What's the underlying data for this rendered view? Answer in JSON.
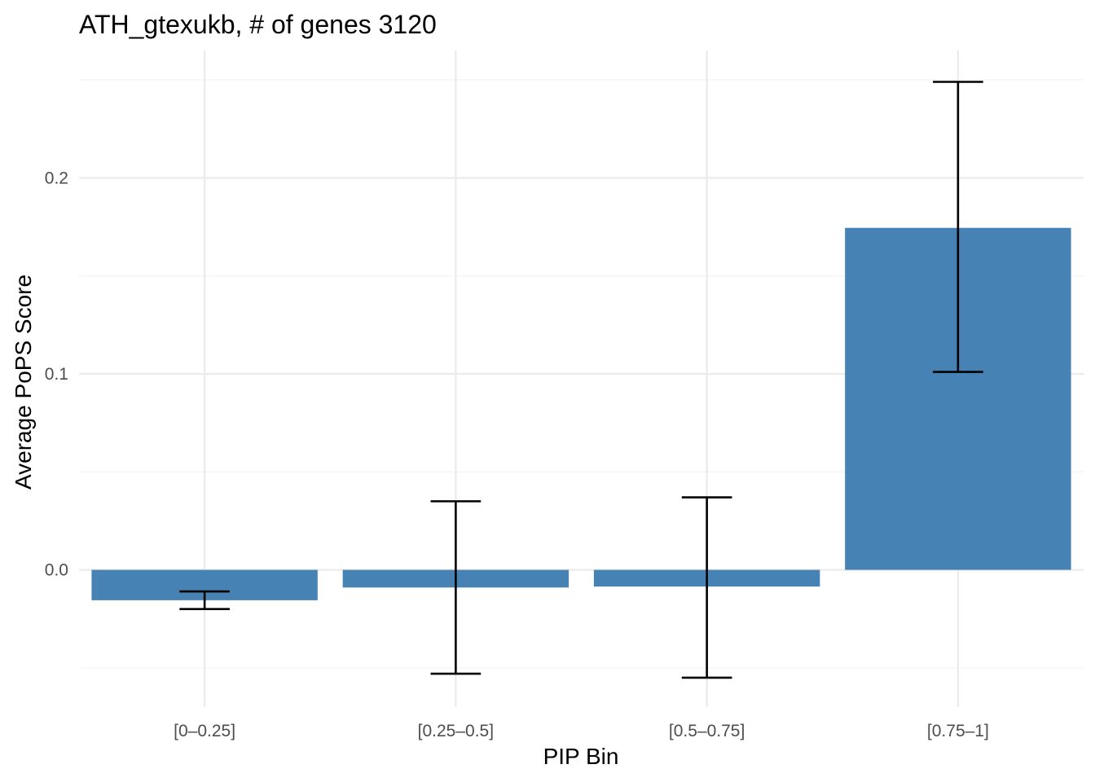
{
  "chart_data": {
    "type": "bar",
    "title": "ATH_gtexukb, # of genes 3120",
    "xlabel": "PIP Bin",
    "ylabel": "Average PoPS Score",
    "categories": [
      "[0–0.25]",
      "[0.25–0.5]",
      "[0.5–0.75]",
      "[0.75–1]"
    ],
    "values": [
      -0.0155,
      -0.009,
      -0.0085,
      0.1745
    ],
    "error_low": [
      -0.02,
      -0.053,
      -0.055,
      0.101
    ],
    "error_high": [
      -0.011,
      0.035,
      0.037,
      0.249
    ],
    "ylim": [
      -0.07,
      0.265
    ],
    "y_ticks": [
      0.0,
      0.1,
      0.2
    ],
    "y_tick_labels": [
      "0.0",
      "0.1",
      "0.2"
    ],
    "y_minor_ticks": [
      -0.05,
      0.05,
      0.15,
      0.25
    ],
    "grid": true,
    "bar_color": "#4682b4",
    "error_color": "#000000"
  }
}
